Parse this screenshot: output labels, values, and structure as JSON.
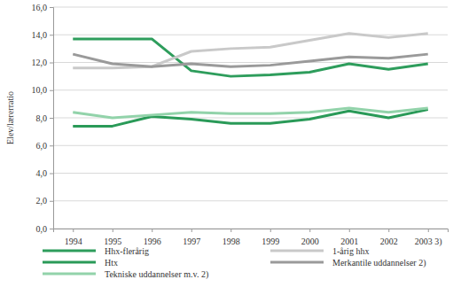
{
  "chart_data": {
    "type": "line",
    "y_label": "Elev/lærerratio",
    "categories": [
      "1994",
      "1995",
      "1996",
      "1997",
      "1998",
      "1999",
      "2000",
      "2001",
      "2002",
      "2003 3)"
    ],
    "series": [
      {
        "name": "Hhx-flerårig",
        "color": "#2e9d5c",
        "values": [
          13.7,
          13.7,
          13.7,
          11.4,
          11.0,
          11.1,
          11.3,
          11.9,
          11.5,
          11.9
        ]
      },
      {
        "name": "1-årig hhx",
        "color": "#c9c9c9",
        "values": [
          11.6,
          11.6,
          11.7,
          12.8,
          13.0,
          13.1,
          13.6,
          14.1,
          13.8,
          14.1
        ]
      },
      {
        "name": "Htx",
        "color": "#2a9a58",
        "values": [
          7.4,
          7.4,
          8.1,
          7.9,
          7.6,
          7.6,
          7.9,
          8.5,
          8.0,
          8.6
        ]
      },
      {
        "name": "Merkantile uddannelser 2)",
        "color": "#9a9a9a",
        "values": [
          12.6,
          11.9,
          11.7,
          11.9,
          11.7,
          11.8,
          12.1,
          12.4,
          12.3,
          12.6
        ]
      },
      {
        "name": "Tekniske uddannelser m.v. 2)",
        "color": "#92d3aa",
        "values": [
          8.4,
          8.0,
          8.2,
          8.4,
          8.3,
          8.3,
          8.4,
          8.7,
          8.4,
          8.7
        ]
      }
    ],
    "ylim": [
      0,
      16
    ],
    "yticks": [
      {
        "value": 0,
        "label": "0,0"
      },
      {
        "value": 2,
        "label": "2,0"
      },
      {
        "value": 4,
        "label": "4,0"
      },
      {
        "value": 6,
        "label": "6,0"
      },
      {
        "value": 8,
        "label": "8,0"
      },
      {
        "value": 10,
        "label": "10,0"
      },
      {
        "value": 12,
        "label": "12,0"
      },
      {
        "value": 14,
        "label": "14,0"
      },
      {
        "value": 16,
        "label": "16,0"
      }
    ],
    "grid": true,
    "legend": "bottom"
  }
}
